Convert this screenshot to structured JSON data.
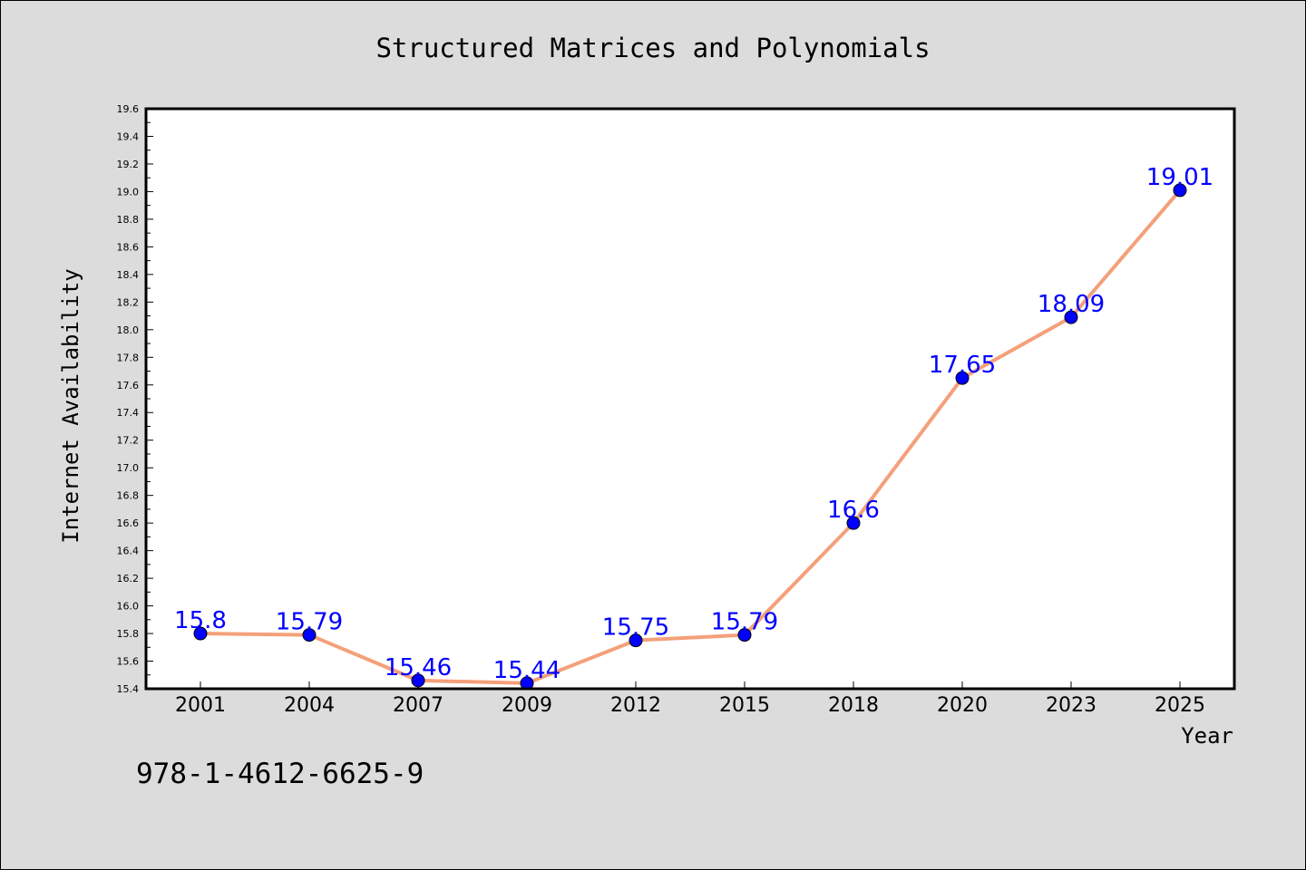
{
  "chart_data": {
    "type": "line",
    "title": "Structured Matrices and Polynomials",
    "xlabel": "Year",
    "ylabel": "Internet Availability",
    "categories": [
      "2001",
      "2004",
      "2007",
      "2009",
      "2012",
      "2015",
      "2018",
      "2020",
      "2023",
      "2025"
    ],
    "series": [
      {
        "values": [
          15.8,
          15.79,
          15.46,
          15.44,
          15.75,
          15.79,
          16.6,
          17.65,
          18.09,
          19.01
        ],
        "data_labels": [
          "15.8",
          "15.79",
          "15.46",
          "15.44",
          "15.75",
          "15.79",
          "16.6",
          "17.65",
          "18.09",
          "19.01"
        ],
        "line_color": "#f4a07a",
        "marker_color": "#0000ff",
        "label_color": "#0000ff"
      }
    ],
    "ylim": [
      15.4,
      19.6
    ],
    "yticks": [
      "15.4",
      "15.6",
      "15.8",
      "16.0",
      "16.2",
      "16.4",
      "16.6",
      "16.8",
      "17.0",
      "17.2",
      "17.4",
      "17.6",
      "17.8",
      "18.0",
      "18.2",
      "18.4",
      "18.6",
      "18.8",
      "19.0",
      "19.2",
      "19.4",
      "19.6"
    ],
    "grid": false,
    "background": "#dcdcdc",
    "plot_background": "#ffffff"
  },
  "isbn": "978-1-4612-6625-9"
}
